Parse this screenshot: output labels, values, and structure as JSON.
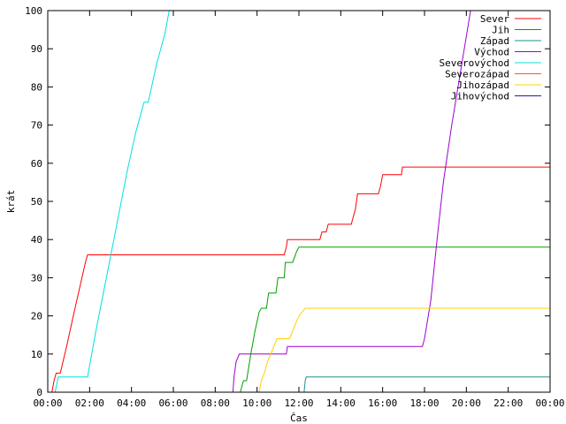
{
  "chart_data": {
    "type": "line",
    "xlabel": "Čas",
    "ylabel": "krát",
    "xlim": [
      0,
      24
    ],
    "ylim": [
      0,
      100
    ],
    "x_ticks": [
      {
        "v": 0,
        "label": "00:00"
      },
      {
        "v": 2,
        "label": "02:00"
      },
      {
        "v": 4,
        "label": "04:00"
      },
      {
        "v": 6,
        "label": "06:00"
      },
      {
        "v": 8,
        "label": "08:00"
      },
      {
        "v": 10,
        "label": "10:00"
      },
      {
        "v": 12,
        "label": "12:00"
      },
      {
        "v": 14,
        "label": "14:00"
      },
      {
        "v": 16,
        "label": "16:00"
      },
      {
        "v": 18,
        "label": "18:00"
      },
      {
        "v": 20,
        "label": "20:00"
      },
      {
        "v": 22,
        "label": "22:00"
      },
      {
        "v": 24,
        "label": "00:00"
      }
    ],
    "y_ticks": [
      0,
      10,
      20,
      30,
      40,
      50,
      60,
      70,
      80,
      90,
      100
    ],
    "legend_position": "top-right",
    "series": [
      {
        "name": "Sever",
        "color": "#ff0000",
        "points": [
          [
            0.2,
            0
          ],
          [
            0.3,
            3
          ],
          [
            0.4,
            5
          ],
          [
            0.6,
            5
          ],
          [
            0.9,
            12
          ],
          [
            1.3,
            22
          ],
          [
            1.8,
            34
          ],
          [
            1.9,
            36
          ],
          [
            11.3,
            36
          ],
          [
            11.4,
            38
          ],
          [
            11.45,
            40
          ],
          [
            13.0,
            40
          ],
          [
            13.1,
            42
          ],
          [
            13.3,
            42
          ],
          [
            13.4,
            44
          ],
          [
            14.5,
            44
          ],
          [
            14.7,
            48
          ],
          [
            14.8,
            52
          ],
          [
            15.8,
            52
          ],
          [
            15.9,
            54
          ],
          [
            16.0,
            57
          ],
          [
            16.9,
            57
          ],
          [
            16.95,
            59
          ],
          [
            24,
            59
          ]
        ]
      },
      {
        "name": "Jih",
        "color": "#00a000",
        "points": [
          [
            9.2,
            0
          ],
          [
            9.35,
            3
          ],
          [
            9.5,
            3
          ],
          [
            9.7,
            10
          ],
          [
            9.9,
            16
          ],
          [
            10.1,
            21
          ],
          [
            10.2,
            22
          ],
          [
            10.45,
            22
          ],
          [
            10.55,
            26
          ],
          [
            10.9,
            26
          ],
          [
            11.0,
            30
          ],
          [
            11.3,
            30
          ],
          [
            11.35,
            34
          ],
          [
            11.7,
            34
          ],
          [
            11.9,
            37
          ],
          [
            12.0,
            38
          ],
          [
            24,
            38
          ]
        ]
      },
      {
        "name": "Západ",
        "color": "#1f8f8f",
        "points": [
          [
            12.25,
            0
          ],
          [
            12.3,
            3
          ],
          [
            12.35,
            4
          ],
          [
            24,
            4
          ]
        ]
      },
      {
        "name": "Východ",
        "color": "#a000d0",
        "points": [
          [
            8.85,
            0
          ],
          [
            8.9,
            4
          ],
          [
            9.0,
            8
          ],
          [
            9.15,
            10
          ],
          [
            11.4,
            10
          ],
          [
            11.45,
            12
          ],
          [
            17.9,
            12
          ],
          [
            18.0,
            14
          ],
          [
            18.3,
            24
          ],
          [
            18.6,
            40
          ],
          [
            18.9,
            55
          ],
          [
            19.3,
            70
          ],
          [
            19.6,
            80
          ],
          [
            19.9,
            90
          ],
          [
            20.2,
            100
          ]
        ]
      },
      {
        "name": "Severovýchod",
        "color": "#00e0e0",
        "points": [
          [
            0.35,
            0
          ],
          [
            0.5,
            4
          ],
          [
            1.9,
            4
          ],
          [
            2.3,
            16
          ],
          [
            2.8,
            30
          ],
          [
            3.3,
            44
          ],
          [
            3.8,
            58
          ],
          [
            4.2,
            68
          ],
          [
            4.6,
            76
          ],
          [
            4.8,
            76
          ],
          [
            5.2,
            86
          ],
          [
            5.6,
            94
          ],
          [
            5.8,
            100
          ]
        ]
      },
      {
        "name": "Severozápad",
        "color": "#ff5a1a",
        "points": []
      },
      {
        "name": "Jihozápad",
        "color": "#ffd000",
        "points": [
          [
            10.1,
            0
          ],
          [
            10.2,
            3
          ],
          [
            10.35,
            5
          ],
          [
            10.5,
            8
          ],
          [
            10.65,
            10
          ],
          [
            10.8,
            12
          ],
          [
            10.95,
            14
          ],
          [
            11.55,
            14
          ],
          [
            11.7,
            16
          ],
          [
            11.85,
            18
          ],
          [
            12.0,
            20
          ],
          [
            12.15,
            21
          ],
          [
            12.3,
            22
          ],
          [
            24,
            22
          ]
        ]
      },
      {
        "name": "Jihovýchod",
        "color": "#2020a0",
        "points": []
      }
    ]
  }
}
